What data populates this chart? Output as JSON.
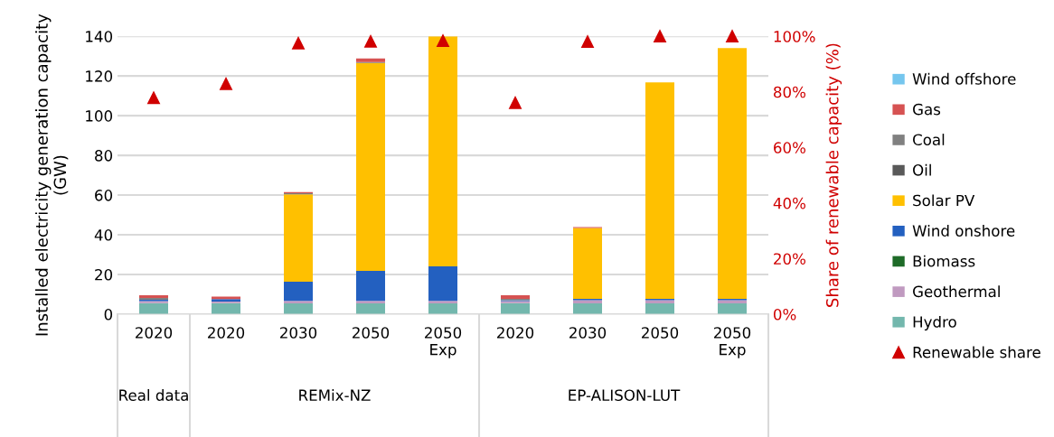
{
  "chart_data": {
    "type": "bar",
    "stacked": true,
    "categories": [
      "2020",
      "2020",
      "2030",
      "2050",
      "2050\nExp",
      "2020",
      "2030",
      "2050",
      "2050\nExp"
    ],
    "ylabel": "Installed electricity generation capacity (GW)",
    "y2label": "Share of renewable capacity (%)",
    "ylim": [
      0,
      140
    ],
    "yticks": [
      0,
      20,
      40,
      60,
      80,
      100,
      120,
      140
    ],
    "y2lim": [
      0,
      100
    ],
    "y2ticks": [
      {
        "value": 0,
        "label": "0%"
      },
      {
        "value": 20,
        "label": "20%"
      },
      {
        "value": 40,
        "label": "40%"
      },
      {
        "value": 60,
        "label": "60%"
      },
      {
        "value": 80,
        "label": "80%"
      },
      {
        "value": 100,
        "label": "100%"
      }
    ],
    "grid": "y",
    "legend": "right",
    "annotations": [
      "Real data",
      "REMix-NZ",
      "EP-ALISON-LUT"
    ],
    "series": [
      {
        "name": "Hydro",
        "color": "#73b7ad",
        "values": [
          5.6,
          5.6,
          5.5,
          5.5,
          5.5,
          5.6,
          5.5,
          5.5,
          5.5
        ]
      },
      {
        "name": "Geothermal",
        "color": "#c09ac0",
        "values": [
          1.0,
          0.8,
          1.2,
          1.2,
          1.2,
          1.0,
          1.5,
          1.5,
          1.5
        ]
      },
      {
        "name": "Biomass",
        "color": "#1e6b28",
        "values": [
          0,
          0,
          0,
          0,
          0,
          0,
          0,
          0,
          0
        ]
      },
      {
        "name": "Wind onshore",
        "color": "#2360c0",
        "values": [
          0.7,
          1.2,
          9.7,
          15.1,
          17.4,
          0.5,
          0.7,
          0.7,
          0.7
        ]
      },
      {
        "name": "Solar PV",
        "color": "#ffc000",
        "values": [
          0,
          0,
          44.0,
          104.7,
          115.9,
          0,
          35.7,
          109.1,
          126.4
        ]
      },
      {
        "name": "Oil",
        "color": "#595959",
        "values": [
          0.3,
          0,
          0,
          0,
          0,
          null,
          0,
          0,
          0
        ]
      },
      {
        "name": "Coal",
        "color": "#808080",
        "values": [
          0.6,
          null,
          0.5,
          0.5,
          0,
          0.6,
          0,
          0,
          0
        ]
      },
      {
        "name": "Gas",
        "color": "#d65252",
        "values": [
          1.3,
          1.3,
          0.6,
          1.8,
          0,
          1.9,
          0.5,
          0,
          0
        ]
      },
      {
        "name": "Wind offshore",
        "color": "#75c6ee",
        "values": [
          0,
          0,
          0,
          0,
          0,
          0,
          0,
          0,
          0
        ]
      },
      {
        "name": "Renewable share",
        "color": "#d00000",
        "type": "scatter",
        "axis": "y2",
        "marker": "triangle",
        "values": [
          77.9,
          82.9,
          97.5,
          98.2,
          98.4,
          76.1,
          98.1,
          100,
          100
        ]
      }
    ]
  }
}
